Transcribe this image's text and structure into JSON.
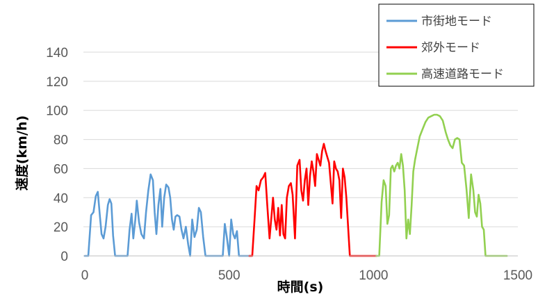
{
  "chart_data": {
    "type": "line",
    "title": "",
    "xlabel": "時間(s)",
    "ylabel": "速度(km/h)",
    "xlim": [
      0,
      1500
    ],
    "ylim": [
      0,
      140
    ],
    "xticks": [
      "0",
      "500",
      "1000",
      "1500"
    ],
    "yticks": [
      "0",
      "20",
      "40",
      "60",
      "80",
      "100",
      "120",
      "140"
    ],
    "grid": "horizontal",
    "legend": "top-right",
    "series": [
      {
        "name": "市街地モード",
        "color": "#5b9bd5",
        "x": [
          0,
          12,
          22,
          30,
          38,
          45,
          52,
          58,
          65,
          72,
          80,
          86,
          92,
          98,
          105,
          115,
          130,
          140,
          148,
          155,
          162,
          168,
          175,
          180,
          188,
          196,
          205,
          212,
          220,
          228,
          236,
          242,
          248,
          255,
          262,
          268,
          275,
          282,
          290,
          296,
          302,
          308,
          314,
          320,
          328,
          335,
          342,
          350,
          358,
          365,
          372,
          380,
          388,
          395,
          402,
          410,
          418,
          425,
          432,
          440,
          448,
          455,
          462,
          470,
          478,
          485,
          492,
          500,
          507,
          514,
          520,
          527,
          534,
          540,
          546,
          552,
          558,
          564,
          570,
          575
        ],
        "y": [
          0,
          0,
          28,
          30,
          41,
          44,
          28,
          15,
          12,
          20,
          35,
          39,
          36,
          14,
          0,
          0,
          0,
          0,
          0,
          18,
          29,
          12,
          25,
          38,
          23,
          15,
          12,
          30,
          45,
          56,
          52,
          30,
          15,
          35,
          46,
          20,
          40,
          49,
          47,
          40,
          25,
          18,
          27,
          28,
          27,
          18,
          12,
          20,
          8,
          0,
          25,
          13,
          18,
          33,
          30,
          13,
          0,
          0,
          0,
          0,
          0,
          0,
          0,
          0,
          0,
          22,
          13,
          0,
          25,
          15,
          12,
          17,
          0,
          0,
          0,
          0,
          0,
          0,
          0,
          0
        ]
      },
      {
        "name": "郊外モード",
        "color": "#ff0000",
        "x": [
          570,
          580,
          588,
          595,
          602,
          610,
          618,
          625,
          632,
          640,
          647,
          652,
          658,
          664,
          670,
          676,
          682,
          688,
          694,
          700,
          707,
          714,
          720,
          728,
          736,
          744,
          750,
          756,
          762,
          768,
          774,
          780,
          786,
          792,
          798,
          804,
          810,
          816,
          822,
          828,
          834,
          840,
          846,
          852,
          858,
          864,
          870,
          876,
          882,
          888,
          894,
          900,
          906,
          912,
          918,
          924,
          930,
          936,
          942,
          948,
          955,
          962,
          970,
          978,
          986,
          994,
          1000,
          1010
        ],
        "y": [
          0,
          0,
          25,
          48,
          45,
          52,
          54,
          57,
          35,
          12,
          28,
          40,
          25,
          18,
          33,
          14,
          35,
          15,
          12,
          40,
          48,
          50,
          42,
          12,
          62,
          66,
          45,
          38,
          52,
          60,
          35,
          55,
          65,
          58,
          48,
          70,
          66,
          62,
          72,
          77,
          72,
          68,
          64,
          50,
          36,
          65,
          60,
          58,
          52,
          26,
          60,
          54,
          40,
          20,
          0,
          0,
          0,
          0,
          0,
          0,
          0,
          0,
          0,
          0,
          0,
          0,
          0,
          0
        ]
      },
      {
        "name": "高速道路モード",
        "color": "#92d050",
        "x": [
          1010,
          1020,
          1028,
          1035,
          1042,
          1048,
          1054,
          1060,
          1066,
          1072,
          1078,
          1084,
          1090,
          1096,
          1102,
          1108,
          1114,
          1120,
          1126,
          1132,
          1138,
          1144,
          1150,
          1160,
          1170,
          1180,
          1190,
          1200,
          1210,
          1220,
          1230,
          1240,
          1250,
          1258,
          1266,
          1274,
          1282,
          1290,
          1298,
          1306,
          1314,
          1322,
          1330,
          1338,
          1346,
          1352,
          1358,
          1364,
          1370,
          1376,
          1382,
          1388,
          1394,
          1400,
          1406,
          1412,
          1418,
          1424,
          1432,
          1440,
          1448,
          1455,
          1462
        ],
        "y": [
          0,
          0,
          37,
          52,
          48,
          22,
          28,
          60,
          62,
          58,
          62,
          64,
          60,
          70,
          62,
          45,
          12,
          25,
          15,
          35,
          58,
          66,
          72,
          82,
          87,
          92,
          95,
          96,
          97,
          97,
          96,
          93,
          85,
          80,
          76,
          74,
          80,
          81,
          80,
          64,
          62,
          46,
          26,
          56,
          45,
          30,
          27,
          42,
          36,
          20,
          18,
          0,
          0,
          0,
          0,
          0,
          0,
          0,
          0,
          0,
          0,
          0,
          0
        ]
      }
    ]
  }
}
